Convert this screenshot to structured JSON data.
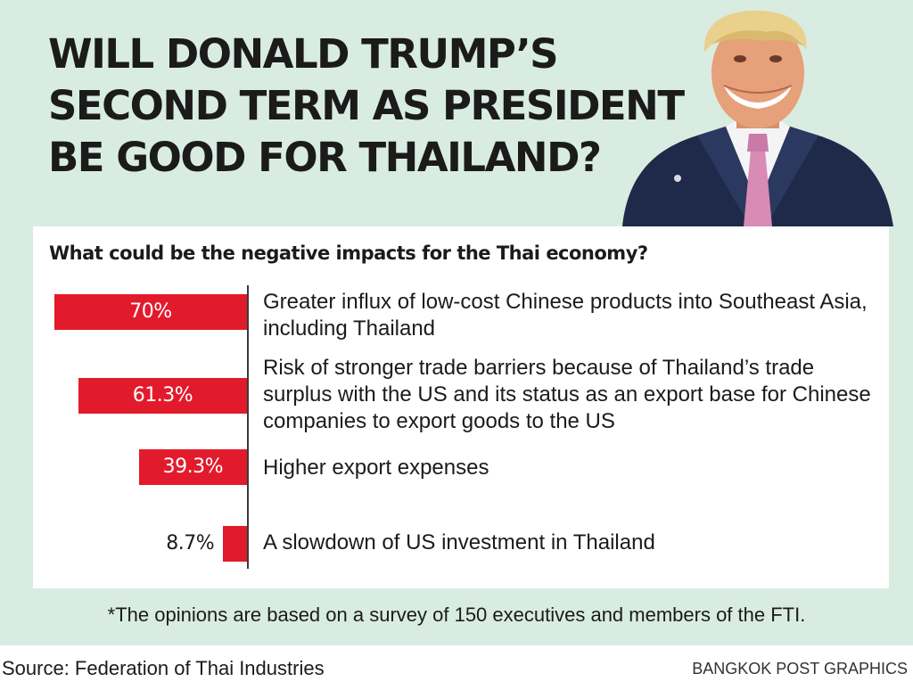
{
  "header": {
    "title_lines": [
      "WILL DONALD TRUMP’S",
      "SECOND TERM AS PRESIDENT",
      "BE GOOD FOR THAILAND?"
    ]
  },
  "chart_data": {
    "type": "bar",
    "orientation": "horizontal",
    "title": "What could be the negative impacts for the Thai economy?",
    "categories": [
      "Greater influx of low-cost Chinese products into Southeast Asia, including Thailand",
      "Risk of stronger trade barriers because of Thailand’s trade surplus with the US and its status as an export base for Chinese companies to export goods to the US",
      "Higher export expenses",
      "A slowdown of US investment in Thailand"
    ],
    "values": [
      70,
      61.3,
      39.3,
      8.7
    ],
    "value_labels": [
      "70%",
      "61.3%",
      "39.3%",
      "8.7%"
    ],
    "unit": "%",
    "bar_color": "#e21b2c",
    "xlim": [
      0,
      70
    ],
    "grid": false
  },
  "footer": {
    "note": "*The opinions are based on a survey of 150 executives and members of the FTI.",
    "source": "Source: Federation of Thai Industries",
    "credit": "BANGKOK POST GRAPHICS"
  },
  "colors": {
    "panel_background": "#d9ece1",
    "card_background": "#ffffff",
    "text": "#1b1b1b",
    "bar": "#e21b2c"
  }
}
